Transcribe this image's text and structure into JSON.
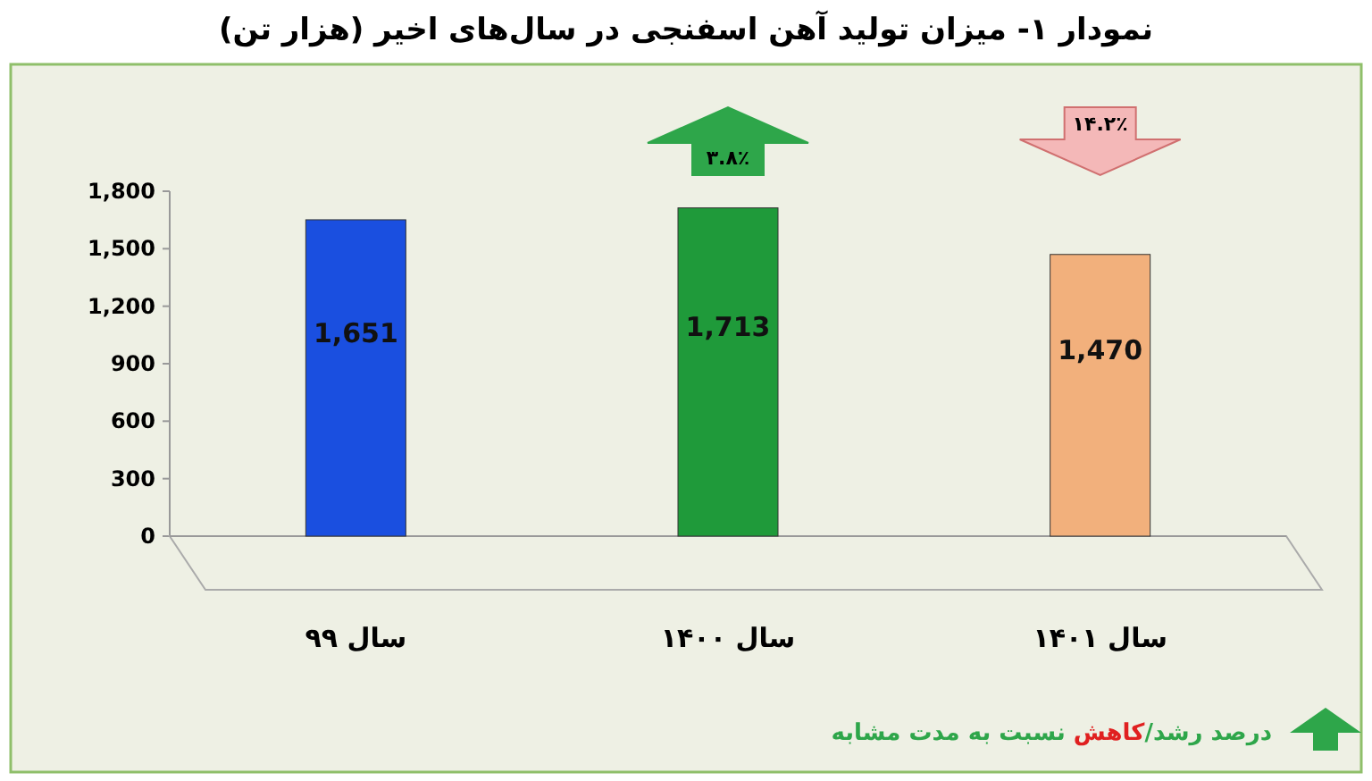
{
  "chart_data": {
    "type": "bar",
    "title": "نمودار ۱- میزان تولید آهن اسفنجی در سال‌های اخیر (هزار تن)",
    "categories": [
      "سال ۹۹",
      "سال ۱۴۰۰",
      "سال ۱۴۰۱"
    ],
    "values": [
      1651,
      1713,
      1470
    ],
    "colors": [
      "#1a4fe0",
      "#1f9a3a",
      "#f2b07c"
    ],
    "ylim": [
      0,
      1800
    ],
    "yticks": [
      0,
      300,
      600,
      900,
      {
        "value": 1200,
        "label": "1,200"
      },
      {
        "value": 1500,
        "label": "1,500"
      },
      {
        "value": 1800,
        "label": "1,800"
      }
    ],
    "value_labels": [
      "1,651",
      "1,713",
      "1,470"
    ],
    "grid": false,
    "annotations": [
      "۳.۸٪",
      "۱۴.۲٪",
      "درصد رشد/کاهش نسبت به مدت مشابه"
    ]
  }
}
